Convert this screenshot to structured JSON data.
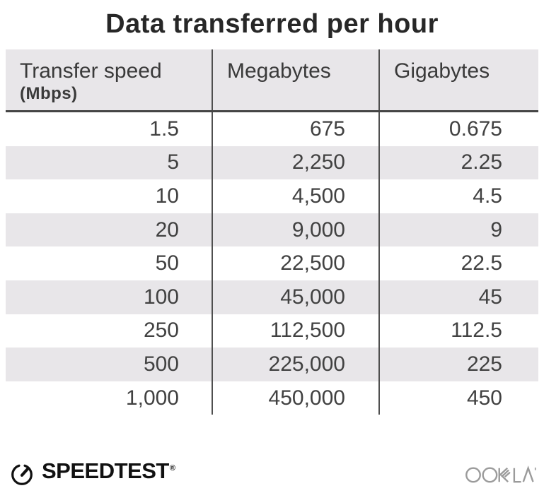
{
  "title": "Data transferred per hour",
  "table": {
    "columns": [
      {
        "label": "Transfer speed",
        "sublabel": "(Mbps)"
      },
      {
        "label": "Megabytes"
      },
      {
        "label": "Gigabytes"
      }
    ],
    "rows": [
      [
        "1.5",
        "675",
        "0.675"
      ],
      [
        "5",
        "2,250",
        "2.25"
      ],
      [
        "10",
        "4,500",
        "4.5"
      ],
      [
        "20",
        "9,000",
        "9"
      ],
      [
        "50",
        "22,500",
        "22.5"
      ],
      [
        "100",
        "45,000",
        "45"
      ],
      [
        "250",
        "112,500",
        "112.5"
      ],
      [
        "500",
        "225,000",
        "225"
      ],
      [
        "1,000",
        "450,000",
        "450"
      ]
    ]
  },
  "footer": {
    "speedtest_label": "SPEEDTEST",
    "speedtest_registered_mark": "®",
    "ookla_label": "OOKLA"
  },
  "colors": {
    "stripe": "#e8e6e9",
    "divider": "#4f4f4f",
    "header_border": "#454545",
    "title_text": "#272727",
    "header_text": "#3a3a3a",
    "body_text": "#414141",
    "speedtest_black": "#111111",
    "ookla_gray": "#9b9b9b"
  },
  "chart_data": {
    "type": "table",
    "title": "Data transferred per hour",
    "columns": [
      "Transfer speed (Mbps)",
      "Megabytes",
      "Gigabytes"
    ],
    "rows": [
      [
        1.5,
        675,
        0.675
      ],
      [
        5,
        2250,
        2.25
      ],
      [
        10,
        4500,
        4.5
      ],
      [
        20,
        9000,
        9
      ],
      [
        50,
        22500,
        22.5
      ],
      [
        100,
        45000,
        45
      ],
      [
        250,
        112500,
        112.5
      ],
      [
        500,
        225000,
        225
      ],
      [
        1000,
        450000,
        450
      ]
    ]
  }
}
